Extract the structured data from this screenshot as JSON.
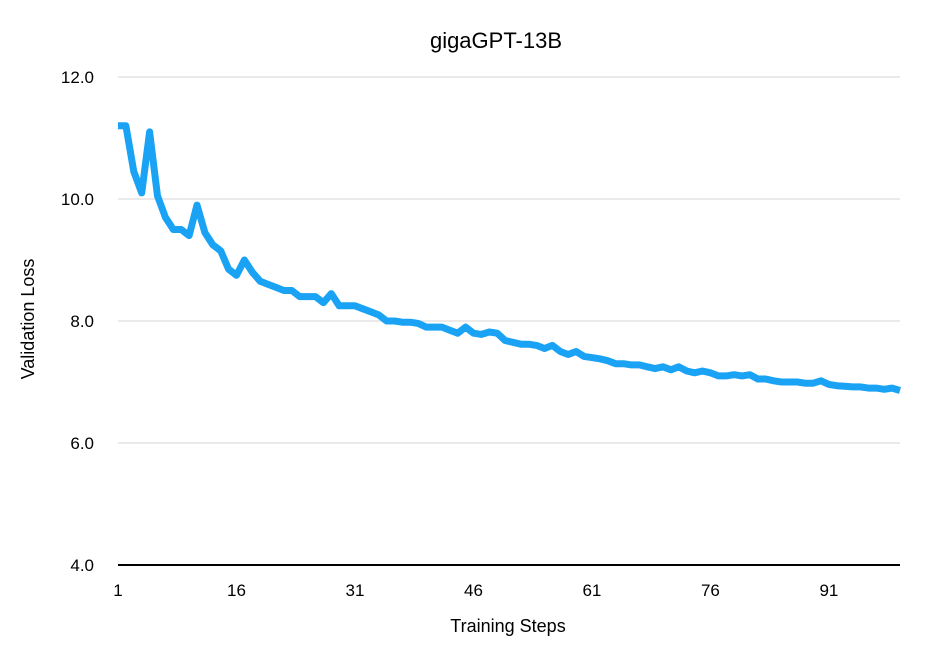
{
  "chart_data": {
    "type": "line",
    "title": "gigaGPT-13B",
    "xlabel": "Training Steps",
    "ylabel": "Validation Loss",
    "xlim": [
      1,
      100
    ],
    "ylim": [
      4.0,
      12.0
    ],
    "x_ticks": [
      1,
      16,
      31,
      46,
      61,
      76,
      91
    ],
    "y_ticks": [
      4.0,
      6.0,
      8.0,
      10.0,
      12.0
    ],
    "y_tick_labels": [
      "4.0",
      "6.0",
      "8.0",
      "10.0",
      "12.0"
    ],
    "grid": true,
    "legend": "none",
    "colors": {
      "series": "#1aa3f4",
      "grid": "#d4d4d4",
      "baseline": "#000000"
    },
    "series": [
      {
        "x": [
          1,
          2,
          3,
          4,
          5,
          6,
          7,
          8,
          9,
          10,
          11,
          12,
          13,
          14,
          15,
          16,
          17,
          18,
          19,
          20,
          21,
          22,
          23,
          24,
          25,
          26,
          27,
          28,
          29,
          30,
          31,
          32,
          33,
          34,
          35,
          36,
          37,
          38,
          39,
          40,
          41,
          42,
          43,
          44,
          45,
          46,
          47,
          48,
          49,
          50,
          51,
          52,
          53,
          54,
          55,
          56,
          57,
          58,
          59,
          60,
          61,
          62,
          63,
          64,
          65,
          66,
          67,
          68,
          69,
          70,
          71,
          72,
          73,
          74,
          75,
          76,
          77,
          78,
          79,
          80,
          81,
          82,
          83,
          84,
          85,
          86,
          87,
          88,
          89,
          90,
          91,
          92,
          93,
          94,
          95,
          96,
          97,
          98,
          99,
          100
        ],
        "values": [
          11.2,
          11.2,
          10.45,
          10.1,
          11.1,
          10.05,
          9.7,
          9.5,
          9.5,
          9.4,
          9.9,
          9.45,
          9.25,
          9.15,
          8.85,
          8.75,
          9.0,
          8.8,
          8.65,
          8.6,
          8.55,
          8.5,
          8.5,
          8.4,
          8.4,
          8.4,
          8.3,
          8.45,
          8.25,
          8.25,
          8.25,
          8.2,
          8.15,
          8.1,
          8.0,
          8.0,
          7.98,
          7.98,
          7.96,
          7.9,
          7.9,
          7.9,
          7.85,
          7.8,
          7.9,
          7.8,
          7.78,
          7.82,
          7.8,
          7.68,
          7.65,
          7.62,
          7.62,
          7.6,
          7.55,
          7.6,
          7.5,
          7.45,
          7.5,
          7.42,
          7.4,
          7.38,
          7.35,
          7.3,
          7.3,
          7.28,
          7.28,
          7.25,
          7.22,
          7.25,
          7.2,
          7.25,
          7.18,
          7.15,
          7.18,
          7.15,
          7.1,
          7.1,
          7.12,
          7.1,
          7.12,
          7.05,
          7.05,
          7.02,
          7.0,
          7.0,
          7.0,
          6.98,
          6.98,
          7.02,
          6.96,
          6.94,
          6.93,
          6.92,
          6.92,
          6.9,
          6.9,
          6.88,
          6.9,
          6.86
        ]
      }
    ]
  }
}
